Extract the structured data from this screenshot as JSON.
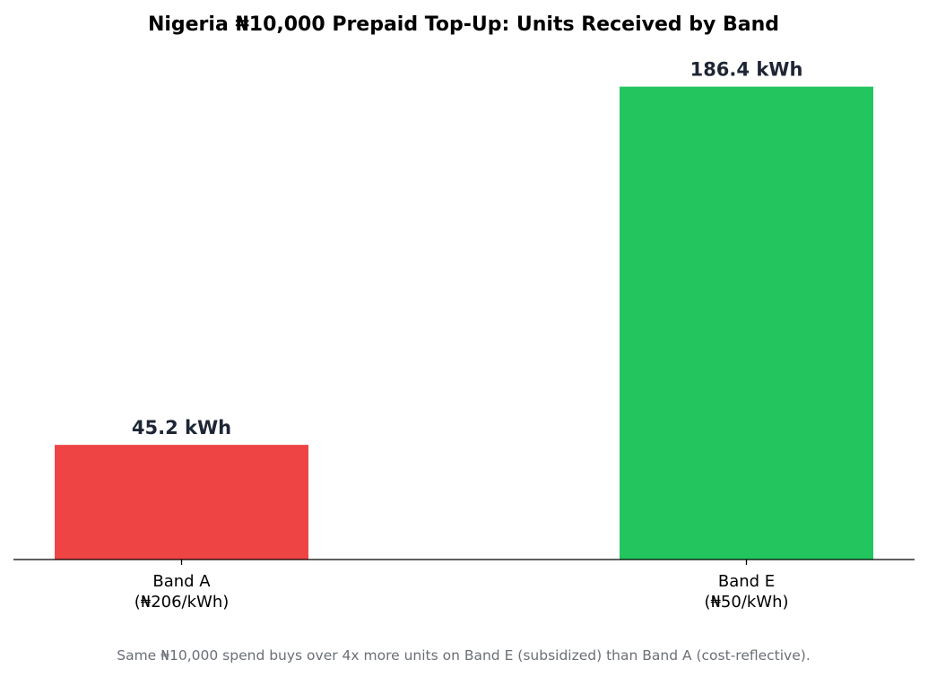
{
  "chart_data": {
    "type": "bar",
    "title": "Nigeria ₦10,000 Prepaid Top-Up: Units Received by Band",
    "categories": [
      {
        "line1": "Band A",
        "line2": "(₦206/kWh)"
      },
      {
        "line1": "Band E",
        "line2": "(₦50/kWh)"
      }
    ],
    "values": [
      45.2,
      186.4
    ],
    "value_labels": [
      "45.2 kWh",
      "186.4 kWh"
    ],
    "colors": [
      "#ef4444",
      "#22c55e"
    ],
    "ylim": [
      0,
      205
    ],
    "grid": false,
    "xlabel": "",
    "ylabel": "",
    "footnote": "Same ₦10,000 spend buys over 4x more units on Band E (subsidized) than Band A (cost-reflective)."
  }
}
